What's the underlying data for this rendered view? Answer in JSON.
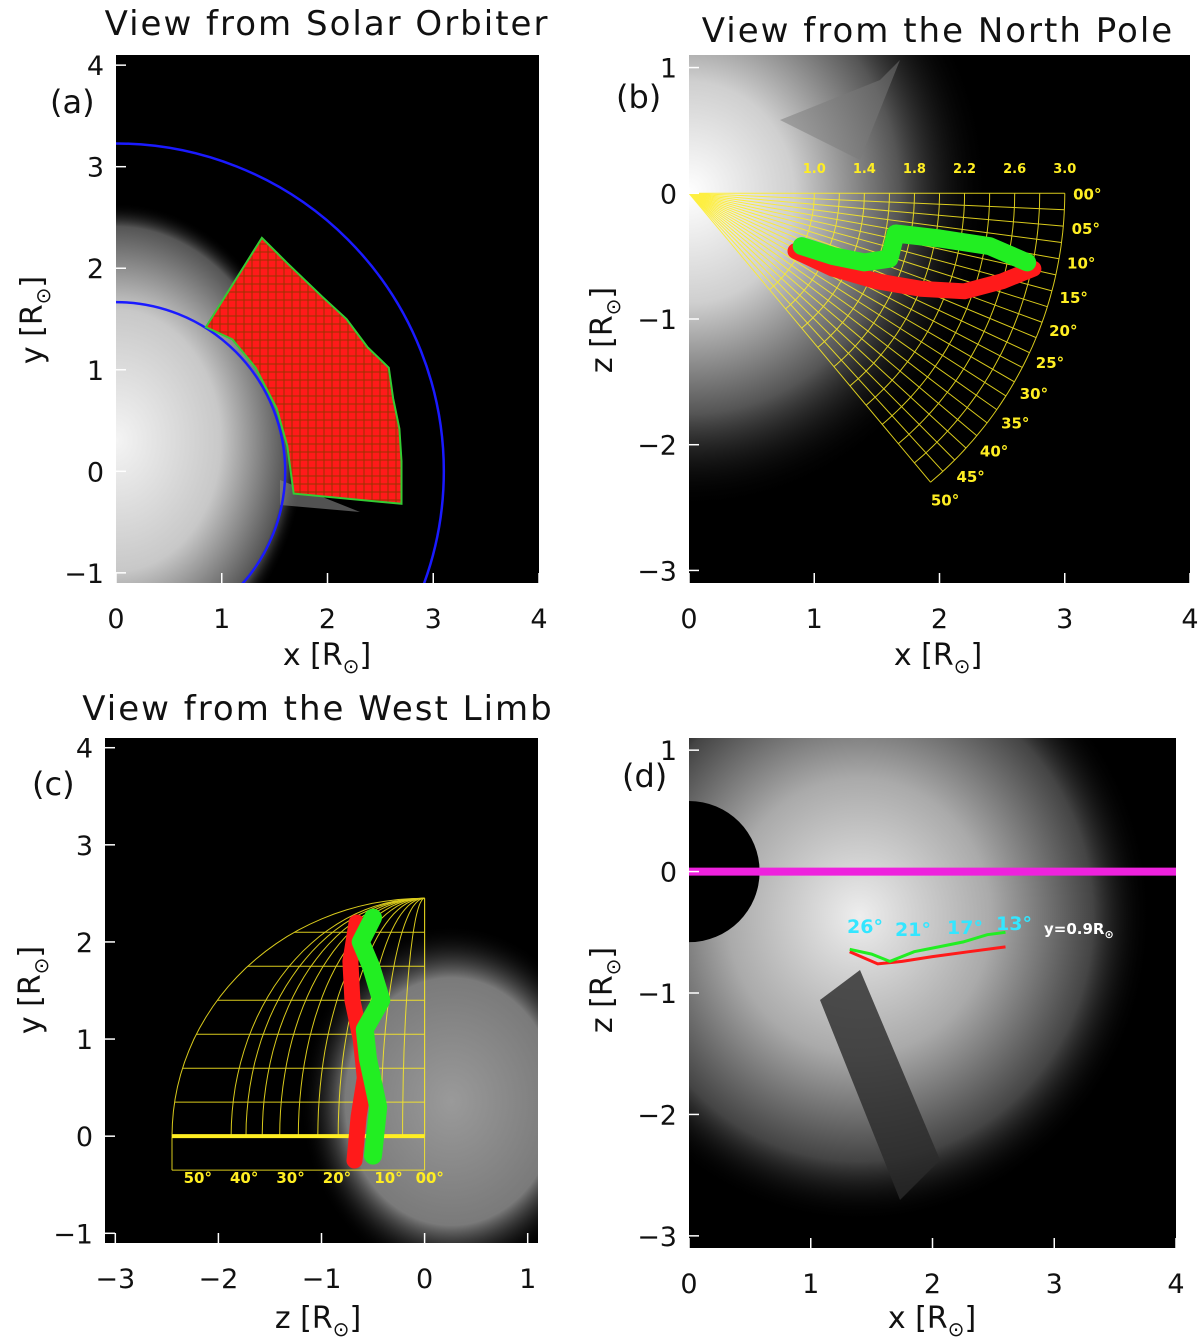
{
  "colors": {
    "red": "#ff1a1a",
    "green": "#22ee22",
    "blue": "#1a1aff",
    "yellow": "#ffee22",
    "magenta": "#ee22dd",
    "cyan": "#33e6ff",
    "bg": "#000000"
  },
  "chart_data": [
    {
      "panel": "(a)",
      "type": "scatter",
      "title": "View from Solar Orbiter",
      "xlabel": "x [R",
      "ylabel": "y [R",
      "unit_suffix": "]",
      "xlim": [
        0,
        4
      ],
      "ylim": [
        -1.1,
        4.1
      ],
      "xticks": [
        "0",
        "1",
        "2",
        "3",
        "4"
      ],
      "yticks": [
        "−1",
        "0",
        "1",
        "2",
        "3",
        "4"
      ],
      "circles": [
        {
          "r": 1.6,
          "color": "blue"
        },
        {
          "r": 3.1,
          "color": "blue"
        }
      ],
      "region_outline": [
        [
          0.85,
          1.42
        ],
        [
          1.38,
          2.3
        ],
        [
          1.62,
          2.05
        ],
        [
          1.95,
          1.72
        ],
        [
          2.18,
          1.5
        ],
        [
          2.38,
          1.22
        ],
        [
          2.58,
          1.02
        ],
        [
          2.62,
          0.72
        ],
        [
          2.68,
          0.42
        ],
        [
          2.7,
          0.1
        ],
        [
          2.7,
          -0.32
        ],
        [
          1.68,
          -0.22
        ],
        [
          1.62,
          0.25
        ],
        [
          1.52,
          0.62
        ],
        [
          1.32,
          1.02
        ],
        [
          1.1,
          1.3
        ]
      ]
    },
    {
      "panel": "(b)",
      "type": "scatter",
      "title": "View from the North Pole",
      "xlabel": "x [R",
      "ylabel": "z [R",
      "unit_suffix": "]",
      "xlim": [
        0,
        4
      ],
      "ylim": [
        -3.1,
        1.1
      ],
      "xticks": [
        "0",
        "1",
        "2",
        "3",
        "4"
      ],
      "yticks": [
        "−3",
        "−2",
        "−1",
        "0",
        "1"
      ],
      "radial_labels": [
        "1.0",
        "1.4",
        "1.8",
        "2.2",
        "2.6",
        "3.0"
      ],
      "angle_labels": [
        "00°",
        "05°",
        "10°",
        "15°",
        "20°",
        "25°",
        "30°",
        "35°",
        "40°",
        "45°",
        "50°"
      ],
      "green_path": [
        [
          0.9,
          -0.42
        ],
        [
          1.15,
          -0.5
        ],
        [
          1.4,
          -0.55
        ],
        [
          1.6,
          -0.52
        ],
        [
          1.65,
          -0.32
        ],
        [
          2.0,
          -0.36
        ],
        [
          2.4,
          -0.42
        ],
        [
          2.7,
          -0.55
        ]
      ],
      "red_path": [
        [
          0.85,
          -0.46
        ],
        [
          1.15,
          -0.6
        ],
        [
          1.5,
          -0.7
        ],
        [
          1.85,
          -0.76
        ],
        [
          2.2,
          -0.78
        ],
        [
          2.5,
          -0.7
        ],
        [
          2.75,
          -0.6
        ]
      ]
    },
    {
      "panel": "(c)",
      "type": "scatter",
      "title": "View from the West Limb",
      "xlabel": "z [R",
      "ylabel": "y [R",
      "unit_suffix": "]",
      "xlim": [
        -3.1,
        1.1
      ],
      "ylim": [
        -1.1,
        4.1
      ],
      "xticks": [
        "−3",
        "−2",
        "−1",
        "0",
        "1"
      ],
      "yticks": [
        "−1",
        "0",
        "1",
        "2",
        "3",
        "4"
      ],
      "angle_labels": [
        "50°",
        "40°",
        "30°",
        "20°",
        "10°",
        "00°"
      ],
      "green_path": [
        [
          -0.5,
          -0.2
        ],
        [
          -0.45,
          0.3
        ],
        [
          -0.55,
          0.8
        ],
        [
          -0.58,
          1.1
        ],
        [
          -0.42,
          1.4
        ],
        [
          -0.52,
          1.75
        ],
        [
          -0.62,
          2.0
        ],
        [
          -0.5,
          2.25
        ]
      ],
      "red_path": [
        [
          -0.68,
          -0.25
        ],
        [
          -0.64,
          0.2
        ],
        [
          -0.58,
          0.6
        ],
        [
          -0.62,
          1.0
        ],
        [
          -0.7,
          1.4
        ],
        [
          -0.72,
          1.8
        ],
        [
          -0.66,
          2.2
        ]
      ]
    },
    {
      "panel": "(d)",
      "type": "line",
      "title": "",
      "xlabel": "x [R",
      "ylabel": "z [R",
      "unit_suffix": "]",
      "xlim": [
        0,
        4
      ],
      "ylim": [
        -3.1,
        1.1
      ],
      "xticks": [
        "0",
        "1",
        "2",
        "3",
        "4"
      ],
      "yticks": [
        "−3",
        "−2",
        "−1",
        "0",
        "1"
      ],
      "annotations": [
        "26°",
        "21°",
        "17°",
        "13°"
      ],
      "y_annotation": "y=0.9R",
      "green_path": [
        [
          1.32,
          -0.64
        ],
        [
          1.5,
          -0.68
        ],
        [
          1.65,
          -0.74
        ],
        [
          1.85,
          -0.66
        ],
        [
          2.05,
          -0.62
        ],
        [
          2.25,
          -0.58
        ],
        [
          2.45,
          -0.52
        ],
        [
          2.6,
          -0.5
        ]
      ],
      "red_path": [
        [
          1.32,
          -0.66
        ],
        [
          1.55,
          -0.76
        ],
        [
          1.75,
          -0.74
        ],
        [
          2.0,
          -0.7
        ],
        [
          2.3,
          -0.66
        ],
        [
          2.6,
          -0.62
        ]
      ]
    }
  ]
}
